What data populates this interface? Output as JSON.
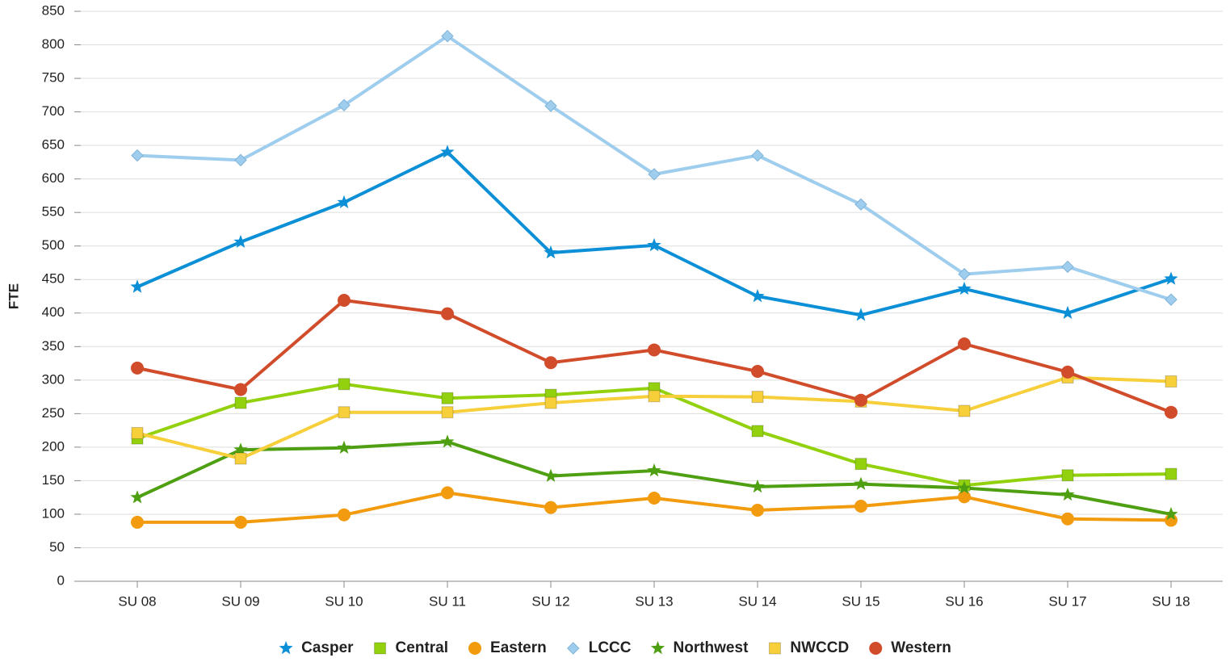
{
  "chart_data": {
    "type": "line",
    "y_label": "FTE",
    "categories": [
      "SU 08",
      "SU 09",
      "SU 10",
      "SU 11",
      "SU 12",
      "SU 13",
      "SU 14",
      "SU 15",
      "SU 16",
      "SU 17",
      "SU 18"
    ],
    "ylim": [
      0,
      850
    ],
    "yticks": [
      0,
      50,
      100,
      150,
      200,
      250,
      300,
      350,
      400,
      450,
      500,
      550,
      600,
      650,
      700,
      750,
      800,
      850
    ],
    "grid": true,
    "legend": "bottom",
    "series": [
      {
        "name": "Casper",
        "color": "#0b8fd6",
        "marker": "star",
        "values": [
          439,
          506,
          565,
          640,
          490,
          501,
          425,
          397,
          436,
          400,
          451
        ]
      },
      {
        "name": "Central",
        "color": "#93d10f",
        "marker": "square",
        "values": [
          213,
          266,
          294,
          273,
          278,
          288,
          224,
          175,
          143,
          158,
          160
        ]
      },
      {
        "name": "Eastern",
        "color": "#f29b0e",
        "marker": "circle",
        "values": [
          88,
          88,
          99,
          132,
          110,
          124,
          106,
          112,
          126,
          93,
          91
        ]
      },
      {
        "name": "LCCC",
        "color": "#9ecdee",
        "marker": "diamond",
        "values": [
          635,
          628,
          710,
          813,
          709,
          607,
          635,
          562,
          458,
          469,
          420
        ]
      },
      {
        "name": "Northwest",
        "color": "#4ea012",
        "marker": "star",
        "values": [
          125,
          196,
          199,
          208,
          157,
          165,
          141,
          145,
          139,
          129,
          100
        ]
      },
      {
        "name": "NWCCD",
        "color": "#f6cf3a",
        "marker": "square",
        "values": [
          221,
          183,
          252,
          252,
          266,
          276,
          275,
          268,
          254,
          304,
          298
        ]
      },
      {
        "name": "Western",
        "color": "#d14c2a",
        "marker": "circle",
        "values": [
          318,
          286,
          419,
          399,
          326,
          345,
          313,
          270,
          354,
          312,
          252
        ]
      }
    ]
  }
}
